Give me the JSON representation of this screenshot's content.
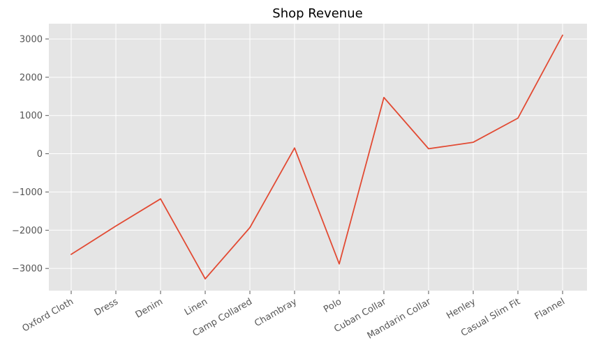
{
  "chart_data": {
    "type": "line",
    "title": "Shop Revenue",
    "xlabel": "",
    "ylabel": "",
    "categories": [
      "Oxford Cloth",
      "Dress",
      "Denim",
      "Linen",
      "Camp Collared",
      "Chambray",
      "Polo",
      "Cuban Collar",
      "Mandarin Collar",
      "Henley",
      "Casual Slim Fit",
      "Flannel"
    ],
    "series": [
      {
        "values": [
          -2630,
          -1890,
          -1180,
          -3270,
          -1930,
          150,
          -2880,
          1470,
          130,
          300,
          930,
          3100
        ]
      }
    ],
    "ylim": [
      -3580,
      3400
    ],
    "yticks": [
      -3000,
      -2000,
      -1000,
      0,
      1000,
      2000,
      3000
    ],
    "ytick_labels": [
      "−3000",
      "−2000",
      "−1000",
      "0",
      "1000",
      "2000",
      "3000"
    ],
    "grid": true,
    "legend": "none",
    "colors": {
      "plot_background": "#e5e5e5",
      "grid": "#ffffff",
      "line": "#e24a33",
      "tick_text": "#555555"
    }
  }
}
